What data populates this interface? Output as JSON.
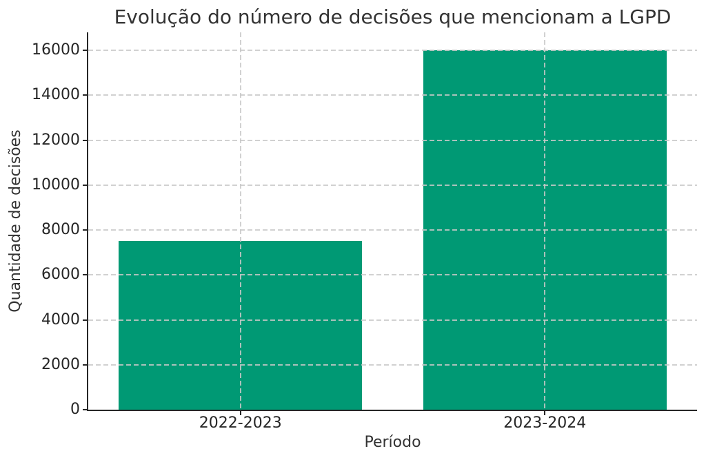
{
  "chart_data": {
    "type": "bar",
    "title": "Evolução do número de decisões que mencionam a LGPD",
    "xlabel": "Período",
    "ylabel": "Quantidade de decisões",
    "categories": [
      "2022-2023",
      "2023-2024"
    ],
    "values": [
      7500,
      16000
    ],
    "yticks": [
      0,
      2000,
      4000,
      6000,
      8000,
      10000,
      12000,
      14000,
      16000
    ],
    "ylim": [
      0,
      16800
    ],
    "bar_width_fraction": 0.4,
    "grid": true,
    "grid_linestyle": "dashed",
    "legend": "none",
    "colors": {
      "bar": "#009974",
      "grid": "#c9c9c9",
      "axis": "#262626",
      "text": "#333333",
      "background": "#ffffff"
    }
  }
}
